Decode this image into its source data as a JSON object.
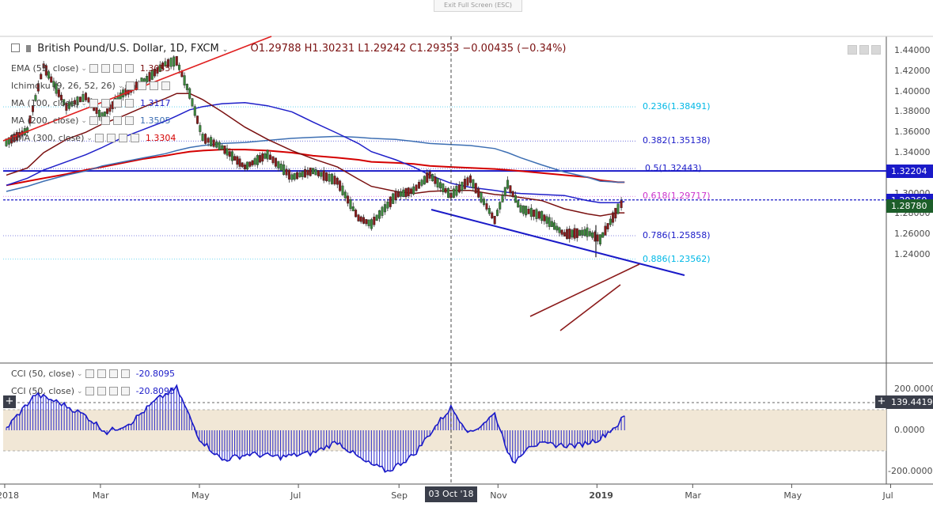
{
  "window": {
    "exit_fullscreen": "Exit Full Screen (ESC)"
  },
  "symbol": {
    "title": "British Pound/U.S. Dollar, 1D, FXCM",
    "ohlc": "O1.29788  H1.30231  L1.29242  C1.29353  −0.00435 (−0.34%)"
  },
  "indicators": [
    {
      "label": "EMA (55, close)",
      "value": "1.3055",
      "color": "#7a1010"
    },
    {
      "label": "Ichimoku (9, 26, 52, 26)",
      "value": "",
      "color": "#2f6db5"
    },
    {
      "label": "MA (100, close)",
      "value": "1.3117",
      "color": "#1f1fc9"
    },
    {
      "label": "MA (200, close)",
      "value": "1.3505",
      "color": "#3d6fb3"
    },
    {
      "label": "EMA (300, close)",
      "value": "1.3304",
      "color": "#d40000"
    }
  ],
  "cci_legends": [
    {
      "label": "CCI (50, close)",
      "value": "-20.8095"
    },
    {
      "label": "CCI (50, close)",
      "value": "-20.8095"
    }
  ],
  "price_axis": [
    "1.44000",
    "1.42000",
    "1.40000",
    "1.38000",
    "1.36000",
    "1.34000",
    "1.32000",
    "1.30000",
    "1.28000",
    "1.26000",
    "1.24000"
  ],
  "cci_axis": [
    "200.0000",
    "0.0000",
    "-200.0000"
  ],
  "price_tags": [
    {
      "label": "1.32204",
      "color": "#1a1ac8"
    },
    {
      "label": "1.29369",
      "color": "#1a1ac8"
    },
    {
      "label": "1.28780",
      "color": "#1d5e2a"
    }
  ],
  "cci_tag": "139.4419",
  "fibonacci": [
    {
      "label": "0.236(1.38491)",
      "color": "#00b8e6"
    },
    {
      "label": "0.382(1.35138)",
      "color": "#1a1ac8"
    },
    {
      "label": "0.5(1.32443)",
      "color": "#1a1ac8"
    },
    {
      "label": "0.618(1.29717)",
      "color": "#cc33cc"
    },
    {
      "label": "0.786(1.25858)",
      "color": "#1a1ac8"
    },
    {
      "label": "0.886(1.23562)",
      "color": "#00b8e6"
    }
  ],
  "time_axis": [
    "2018",
    "Mar",
    "May",
    "Jul",
    "Sep",
    "Nov",
    "2019",
    "Mar",
    "May",
    "Jul"
  ],
  "crosshair_date": "03 Oct '18",
  "chart_data": {
    "type": "line",
    "title": "British Pound/U.S. Dollar, 1D, FXCM",
    "xlabel": "",
    "ylabel": "",
    "ylim": [
      1.228,
      1.447
    ],
    "x": [
      "2018-01-02",
      "2018-01-15",
      "2018-01-25",
      "2018-02-08",
      "2018-02-20",
      "2018-03-02",
      "2018-03-15",
      "2018-03-28",
      "2018-04-10",
      "2018-04-17",
      "2018-04-25",
      "2018-05-03",
      "2018-05-15",
      "2018-05-29",
      "2018-06-12",
      "2018-06-27",
      "2018-07-10",
      "2018-07-25",
      "2018-08-07",
      "2018-08-15",
      "2018-08-30",
      "2018-09-10",
      "2018-09-20",
      "2018-10-03",
      "2018-10-15",
      "2018-10-30",
      "2018-11-07",
      "2018-11-15",
      "2018-11-28",
      "2018-12-12",
      "2018-12-26",
      "2019-01-03",
      "2019-01-14",
      "2019-01-18"
    ],
    "series": [
      {
        "name": "British Pound/U.S. Dollar",
        "values": [
          1.35,
          1.362,
          1.425,
          1.385,
          1.395,
          1.375,
          1.398,
          1.41,
          1.427,
          1.43,
          1.398,
          1.355,
          1.345,
          1.326,
          1.338,
          1.316,
          1.322,
          1.312,
          1.276,
          1.27,
          1.298,
          1.303,
          1.318,
          1.298,
          1.314,
          1.274,
          1.309,
          1.285,
          1.278,
          1.26,
          1.262,
          1.255,
          1.285,
          1.294
        ]
      },
      {
        "name": "EMA (55, close)",
        "values": [
          1.318,
          1.325,
          1.34,
          1.353,
          1.36,
          1.368,
          1.376,
          1.385,
          1.393,
          1.398,
          1.398,
          1.392,
          1.38,
          1.365,
          1.353,
          1.342,
          1.334,
          1.326,
          1.314,
          1.307,
          1.302,
          1.3,
          1.302,
          1.303,
          1.303,
          1.299,
          1.298,
          1.296,
          1.293,
          1.285,
          1.28,
          1.278,
          1.281,
          1.281
        ]
      },
      {
        "name": "MA (100, close)",
        "values": [
          1.308,
          1.315,
          1.323,
          1.331,
          1.338,
          1.345,
          1.355,
          1.363,
          1.371,
          1.376,
          1.382,
          1.385,
          1.388,
          1.389,
          1.386,
          1.38,
          1.37,
          1.359,
          1.349,
          1.341,
          1.333,
          1.326,
          1.318,
          1.31,
          1.306,
          1.303,
          1.301,
          1.3,
          1.299,
          1.298,
          1.293,
          1.291,
          1.291,
          1.292
        ]
      },
      {
        "name": "MA (200, close)",
        "values": [
          1.302,
          1.307,
          1.312,
          1.318,
          1.322,
          1.327,
          1.331,
          1.335,
          1.339,
          1.342,
          1.345,
          1.347,
          1.349,
          1.35,
          1.352,
          1.354,
          1.355,
          1.356,
          1.355,
          1.354,
          1.353,
          1.351,
          1.349,
          1.348,
          1.347,
          1.344,
          1.34,
          1.335,
          1.328,
          1.321,
          1.316,
          1.312,
          1.311,
          1.311
        ]
      },
      {
        "name": "EMA (300, close)",
        "values": [
          1.308,
          1.312,
          1.315,
          1.319,
          1.323,
          1.326,
          1.33,
          1.334,
          1.337,
          1.339,
          1.341,
          1.342,
          1.343,
          1.343,
          1.342,
          1.34,
          1.337,
          1.335,
          1.333,
          1.331,
          1.33,
          1.329,
          1.327,
          1.326,
          1.325,
          1.324,
          1.323,
          1.322,
          1.32,
          1.318,
          1.316,
          1.313,
          1.311,
          1.311
        ]
      }
    ],
    "cci": {
      "name": "CCI (50, close)",
      "ylim": [
        -230,
        240
      ],
      "x": [
        "2018-01-02",
        "2018-01-20",
        "2018-02-05",
        "2018-02-20",
        "2018-03-05",
        "2018-03-20",
        "2018-04-05",
        "2018-04-17",
        "2018-05-01",
        "2018-05-15",
        "2018-06-01",
        "2018-06-20",
        "2018-07-10",
        "2018-07-25",
        "2018-08-10",
        "2018-08-25",
        "2018-09-10",
        "2018-09-25",
        "2018-10-03",
        "2018-10-15",
        "2018-10-30",
        "2018-11-10",
        "2018-11-20",
        "2018-12-05",
        "2018-12-20",
        "2019-01-03",
        "2019-01-14",
        "2019-01-18"
      ],
      "values": [
        10,
        175,
        130,
        70,
        -10,
        40,
        150,
        205,
        -40,
        -145,
        -115,
        -130,
        -110,
        -55,
        -150,
        -200,
        -120,
        35,
        110,
        -15,
        80,
        -165,
        -70,
        -70,
        -75,
        -40,
        30,
        70
      ],
      "band": [
        -100,
        100
      ]
    }
  }
}
